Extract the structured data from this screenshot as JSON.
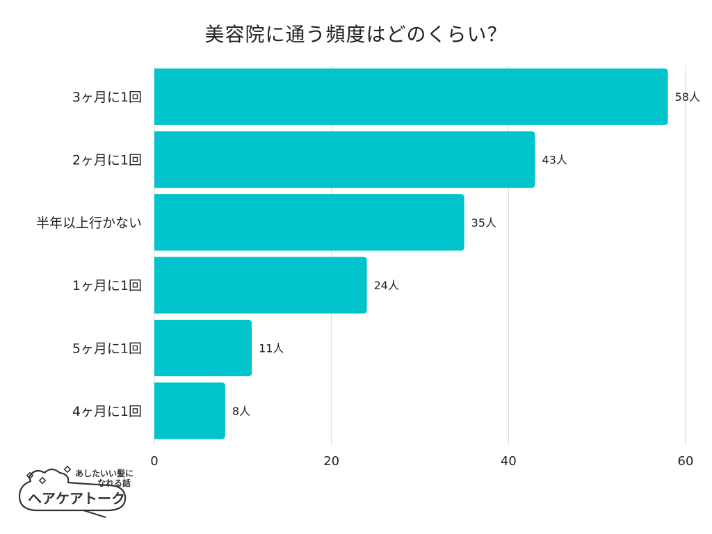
{
  "chart_data": {
    "type": "bar",
    "orientation": "horizontal",
    "title": "美容院に通う頻度はどのくらい？",
    "categories": [
      "3ヶ月に1回",
      "2ヶ月に1回",
      "半年以上行かない",
      "1ヶ月に1回",
      "5ヶ月に1回",
      "4ヶ月に1回"
    ],
    "values": [
      58,
      43,
      35,
      24,
      11,
      8
    ],
    "value_labels": [
      "58人",
      "43人",
      "35人",
      "24人",
      "11人",
      "8人"
    ],
    "xlim": [
      0,
      60
    ],
    "xticks": [
      "0",
      "20",
      "40",
      "60"
    ],
    "xlabel": "",
    "ylabel": "",
    "grid": true,
    "bar_color": "#00C3CB",
    "grid_color": "#D9D9D9"
  },
  "brand": {
    "tagline_line1": "あしたいい髪に",
    "tagline_line2": "なれる話",
    "name": "ヘアケアトーク"
  }
}
